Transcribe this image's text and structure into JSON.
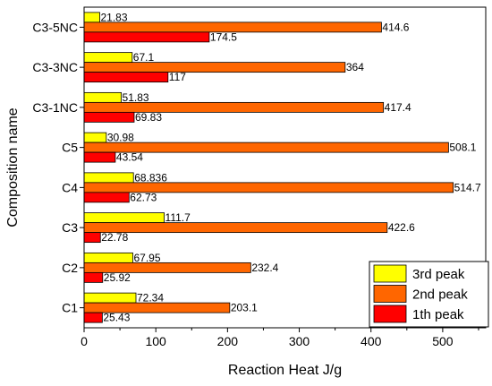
{
  "chart_data": {
    "type": "bar",
    "orientation": "horizontal",
    "categories": [
      "C1",
      "C2",
      "C3",
      "C4",
      "C5",
      "C3-1NC",
      "C3-3NC",
      "C3-5NC"
    ],
    "series": [
      {
        "name": "3rd peak",
        "color": "#ffff00",
        "values": [
          72.34,
          67.95,
          111.7,
          68.836,
          30.98,
          51.83,
          67.1,
          21.83
        ],
        "labels": [
          "72.34",
          "67.95",
          "111.7",
          "68.836",
          "30.98",
          "51.83",
          "67.1",
          "21.83"
        ]
      },
      {
        "name": "2nd peak",
        "color": "#ff6600",
        "values": [
          203.1,
          232.4,
          422.6,
          514.7,
          508.1,
          417.4,
          364,
          414.6
        ],
        "labels": [
          "203.1",
          "232.4",
          "422.6",
          "514.7",
          "508.1",
          "417.4",
          "364",
          "414.6"
        ]
      },
      {
        "name": "1th peak",
        "color": "#ff0000",
        "values": [
          25.43,
          25.92,
          22.78,
          62.73,
          43.54,
          69.83,
          117,
          174.5
        ],
        "labels": [
          "25.43",
          "25.92",
          "22.78",
          "62.73",
          "43.54",
          "69.83",
          "117",
          "174.5"
        ]
      }
    ],
    "xlabel": "Reaction Heat J/g",
    "ylabel": "Composition name",
    "xlim": [
      0,
      560
    ],
    "xticks": [
      0,
      100,
      200,
      300,
      400,
      500
    ],
    "grid": false,
    "legend_position": "bottom-right"
  }
}
